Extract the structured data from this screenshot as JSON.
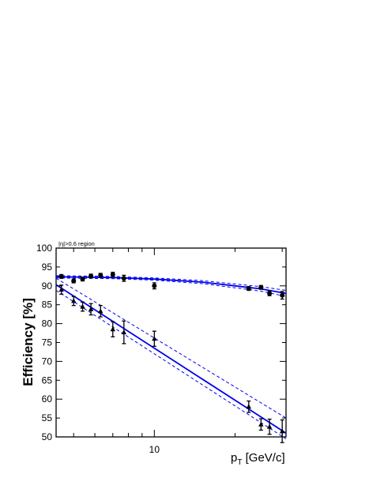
{
  "chart_data": {
    "type": "scatter",
    "annotation": "|η|>0.6 region",
    "ylabel": "Efficiency [%]",
    "xlabel_main": "p",
    "xlabel_sub": "T",
    "xlabel_units": "[GeV/c]",
    "x_scale": "log",
    "xlim": [
      4.3,
      31
    ],
    "ylim": [
      50,
      100
    ],
    "x_ticks": [
      10
    ],
    "y_ticks": [
      50,
      55,
      60,
      65,
      70,
      75,
      80,
      85,
      90,
      95,
      100
    ],
    "grid": false,
    "series": [
      {
        "marker": "circle",
        "points": [
          {
            "x": 4.5,
            "y": 92.5,
            "err": 0.5
          },
          {
            "x": 5.0,
            "y": 91.3,
            "err": 0.5
          },
          {
            "x": 5.4,
            "y": 91.8,
            "err": 0.5
          },
          {
            "x": 5.8,
            "y": 92.6,
            "err": 0.5
          },
          {
            "x": 6.3,
            "y": 92.8,
            "err": 0.5
          },
          {
            "x": 7.0,
            "y": 93.0,
            "err": 0.6
          },
          {
            "x": 7.7,
            "y": 92.0,
            "err": 0.8
          },
          {
            "x": 10.0,
            "y": 90.0,
            "err": 0.8
          },
          {
            "x": 22.5,
            "y": 89.3,
            "err": 0.5
          },
          {
            "x": 25.0,
            "y": 89.6,
            "err": 0.5
          },
          {
            "x": 26.9,
            "y": 88.0,
            "err": 0.6
          },
          {
            "x": 30.0,
            "y": 87.5,
            "err": 1.0
          }
        ],
        "fit": [
          [
            4.3,
            92.4
          ],
          [
            7.0,
            92.2
          ],
          [
            10.0,
            91.8
          ],
          [
            15.0,
            91.0
          ],
          [
            20.0,
            90.0
          ],
          [
            25.0,
            89.2
          ],
          [
            31.0,
            88.0
          ]
        ],
        "band_upper": [
          [
            4.3,
            92.7
          ],
          [
            7.0,
            92.5
          ],
          [
            10.0,
            92.1
          ],
          [
            15.0,
            91.4
          ],
          [
            20.0,
            90.5
          ],
          [
            25.0,
            89.8
          ],
          [
            31.0,
            88.8
          ]
        ],
        "band_lower": [
          [
            4.3,
            92.1
          ],
          [
            7.0,
            91.9
          ],
          [
            10.0,
            91.5
          ],
          [
            15.0,
            90.6
          ],
          [
            20.0,
            89.5
          ],
          [
            25.0,
            88.6
          ],
          [
            31.0,
            87.2
          ]
        ]
      },
      {
        "marker": "triangle",
        "points": [
          {
            "x": 4.5,
            "y": 89.0,
            "err": 1.2
          },
          {
            "x": 5.0,
            "y": 86.0,
            "err": 1.2
          },
          {
            "x": 5.4,
            "y": 84.5,
            "err": 1.2
          },
          {
            "x": 5.8,
            "y": 83.8,
            "err": 1.5
          },
          {
            "x": 6.3,
            "y": 83.3,
            "err": 1.5
          },
          {
            "x": 7.0,
            "y": 78.5,
            "err": 2.0
          },
          {
            "x": 7.7,
            "y": 77.7,
            "err": 3.0
          },
          {
            "x": 10.0,
            "y": 76.0,
            "err": 2.0
          },
          {
            "x": 22.5,
            "y": 58.0,
            "err": 1.5
          },
          {
            "x": 25.0,
            "y": 53.3,
            "err": 1.5
          },
          {
            "x": 26.9,
            "y": 52.7,
            "err": 2.0
          },
          {
            "x": 30.0,
            "y": 51.5,
            "err": 3.0
          }
        ],
        "fit": [
          [
            4.3,
            90.3
          ],
          [
            31.0,
            51.0
          ]
        ],
        "band_upper": [
          [
            4.3,
            92.0
          ],
          [
            31.0,
            55.0
          ]
        ],
        "band_lower": [
          [
            4.3,
            88.8
          ],
          [
            31.0,
            49.5
          ]
        ]
      }
    ]
  }
}
